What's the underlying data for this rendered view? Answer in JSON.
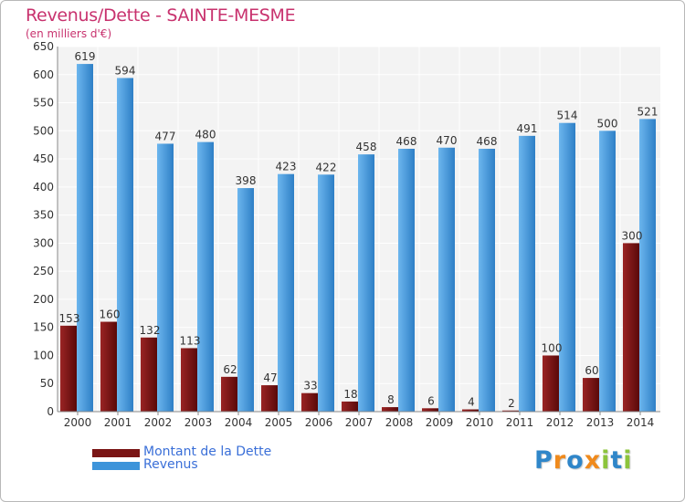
{
  "header": {
    "title": "Revenus/Dette - SAINTE-MESME",
    "subtitle": "(en milliers d'€)"
  },
  "legend": [
    {
      "label": "Montant de la Dette",
      "color": "#7a1515"
    },
    {
      "label": "Revenus",
      "color": "#3d94da"
    }
  ],
  "logo": {
    "text": "Proxiti",
    "letters": [
      {
        "ch": "P",
        "color": "#2f86c9"
      },
      {
        "ch": "r",
        "color": "#f08a1c"
      },
      {
        "ch": "o",
        "color": "#2f86c9"
      },
      {
        "ch": "x",
        "color": "#f08a1c"
      },
      {
        "ch": "i",
        "color": "#8cc43c"
      },
      {
        "ch": "t",
        "color": "#2f86c9"
      },
      {
        "ch": "i",
        "color": "#8cc43c"
      }
    ]
  },
  "chart_data": {
    "type": "bar",
    "title": "Revenus/Dette - SAINTE-MESME",
    "ylabel": "(en milliers d'€)",
    "categories": [
      "2000",
      "2001",
      "2002",
      "2003",
      "2004",
      "2005",
      "2006",
      "2007",
      "2008",
      "2009",
      "2010",
      "2011",
      "2012",
      "2013",
      "2014"
    ],
    "series": [
      {
        "name": "Montant de la Dette",
        "color": "#7a1515",
        "values": [
          153,
          160,
          132,
          113,
          62,
          47,
          33,
          18,
          8,
          6,
          4,
          2,
          100,
          60,
          300
        ]
      },
      {
        "name": "Revenus",
        "color": "#3d94da",
        "values": [
          619,
          594,
          477,
          480,
          398,
          423,
          422,
          458,
          468,
          470,
          468,
          491,
          514,
          500,
          521
        ]
      }
    ],
    "ylim": [
      0,
      650
    ],
    "yticks": [
      0,
      50,
      100,
      150,
      200,
      250,
      300,
      350,
      400,
      450,
      500,
      550,
      600,
      650
    ],
    "grid": true,
    "legend_position": "bottom-left"
  }
}
